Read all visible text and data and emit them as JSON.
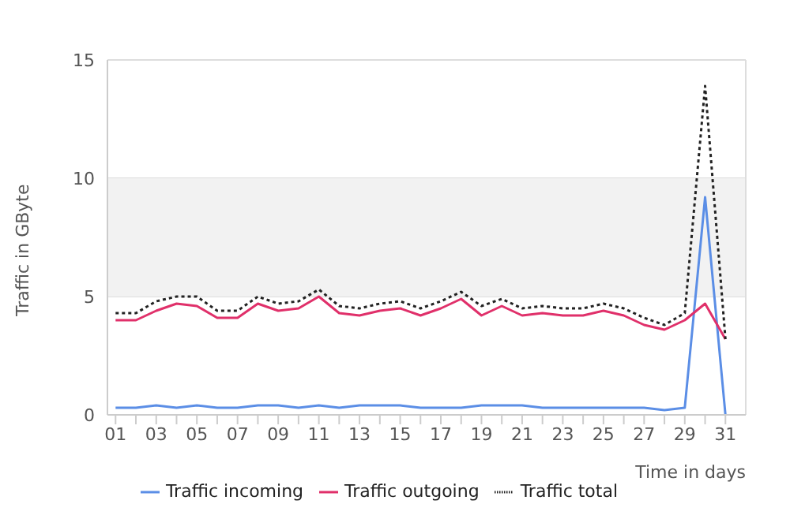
{
  "chart_data": {
    "type": "line",
    "ylabel": "Traffic in GByte",
    "xlabel": "Time in days",
    "x": [
      1,
      2,
      3,
      4,
      5,
      6,
      7,
      8,
      9,
      10,
      11,
      12,
      13,
      14,
      15,
      16,
      17,
      18,
      19,
      20,
      21,
      22,
      23,
      24,
      25,
      26,
      27,
      28,
      29,
      30,
      31
    ],
    "xlim": [
      0.6,
      32
    ],
    "xticks": [
      {
        "value": 1,
        "label": "01"
      },
      {
        "value": 2,
        "label": null
      },
      {
        "value": 3,
        "label": "03"
      },
      {
        "value": 4,
        "label": null
      },
      {
        "value": 5,
        "label": "05"
      },
      {
        "value": 6,
        "label": null
      },
      {
        "value": 7,
        "label": "07"
      },
      {
        "value": 8,
        "label": null
      },
      {
        "value": 9,
        "label": "09"
      },
      {
        "value": 10,
        "label": null
      },
      {
        "value": 11,
        "label": "11"
      },
      {
        "value": 12,
        "label": null
      },
      {
        "value": 13,
        "label": "13"
      },
      {
        "value": 14,
        "label": null
      },
      {
        "value": 15,
        "label": "15"
      },
      {
        "value": 16,
        "label": null
      },
      {
        "value": 17,
        "label": "17"
      },
      {
        "value": 18,
        "label": null
      },
      {
        "value": 19,
        "label": "19"
      },
      {
        "value": 20,
        "label": null
      },
      {
        "value": 21,
        "label": "21"
      },
      {
        "value": 22,
        "label": null
      },
      {
        "value": 23,
        "label": "23"
      },
      {
        "value": 24,
        "label": null
      },
      {
        "value": 25,
        "label": "25"
      },
      {
        "value": 26,
        "label": null
      },
      {
        "value": 27,
        "label": "27"
      },
      {
        "value": 28,
        "label": null
      },
      {
        "value": 29,
        "label": "29"
      },
      {
        "value": 30,
        "label": null
      },
      {
        "value": 31,
        "label": "31"
      }
    ],
    "ylim": [
      0,
      15
    ],
    "yticks": [
      0,
      5,
      10,
      15
    ],
    "grid": "y",
    "legend": "bottom",
    "marker": "none",
    "bands": [
      {
        "axis": "y",
        "from": 5,
        "to": 10,
        "color": "#f2f2f2"
      }
    ],
    "series": [
      {
        "name": "Traffic incoming",
        "color": "#5b8ee6",
        "line_style": "solid",
        "values": [
          0.3,
          0.3,
          0.4,
          0.3,
          0.4,
          0.3,
          0.3,
          0.4,
          0.4,
          0.3,
          0.4,
          0.3,
          0.4,
          0.4,
          0.4,
          0.3,
          0.3,
          0.3,
          0.4,
          0.4,
          0.4,
          0.3,
          0.3,
          0.3,
          0.3,
          0.3,
          0.3,
          0.2,
          0.3,
          9.2,
          0
        ]
      },
      {
        "name": "Traffic outgoing",
        "color": "#e0306a",
        "line_style": "solid",
        "values": [
          4.0,
          4.0,
          4.4,
          4.7,
          4.6,
          4.1,
          4.1,
          4.7,
          4.4,
          4.5,
          5.0,
          4.3,
          4.2,
          4.4,
          4.5,
          4.2,
          4.5,
          4.9,
          4.2,
          4.6,
          4.2,
          4.3,
          4.2,
          4.2,
          4.4,
          4.2,
          3.8,
          3.6,
          4.0,
          4.7,
          3.2
        ]
      },
      {
        "name": "Traffic total",
        "color": "#222222",
        "line_style": "dotted",
        "values": [
          4.3,
          4.3,
          4.8,
          5.0,
          5.0,
          4.4,
          4.4,
          5.0,
          4.7,
          4.8,
          5.3,
          4.6,
          4.5,
          4.7,
          4.8,
          4.5,
          4.8,
          5.2,
          4.6,
          4.9,
          4.5,
          4.6,
          4.5,
          4.5,
          4.7,
          4.5,
          4.1,
          3.8,
          4.3,
          13.9,
          3.2
        ]
      }
    ]
  }
}
